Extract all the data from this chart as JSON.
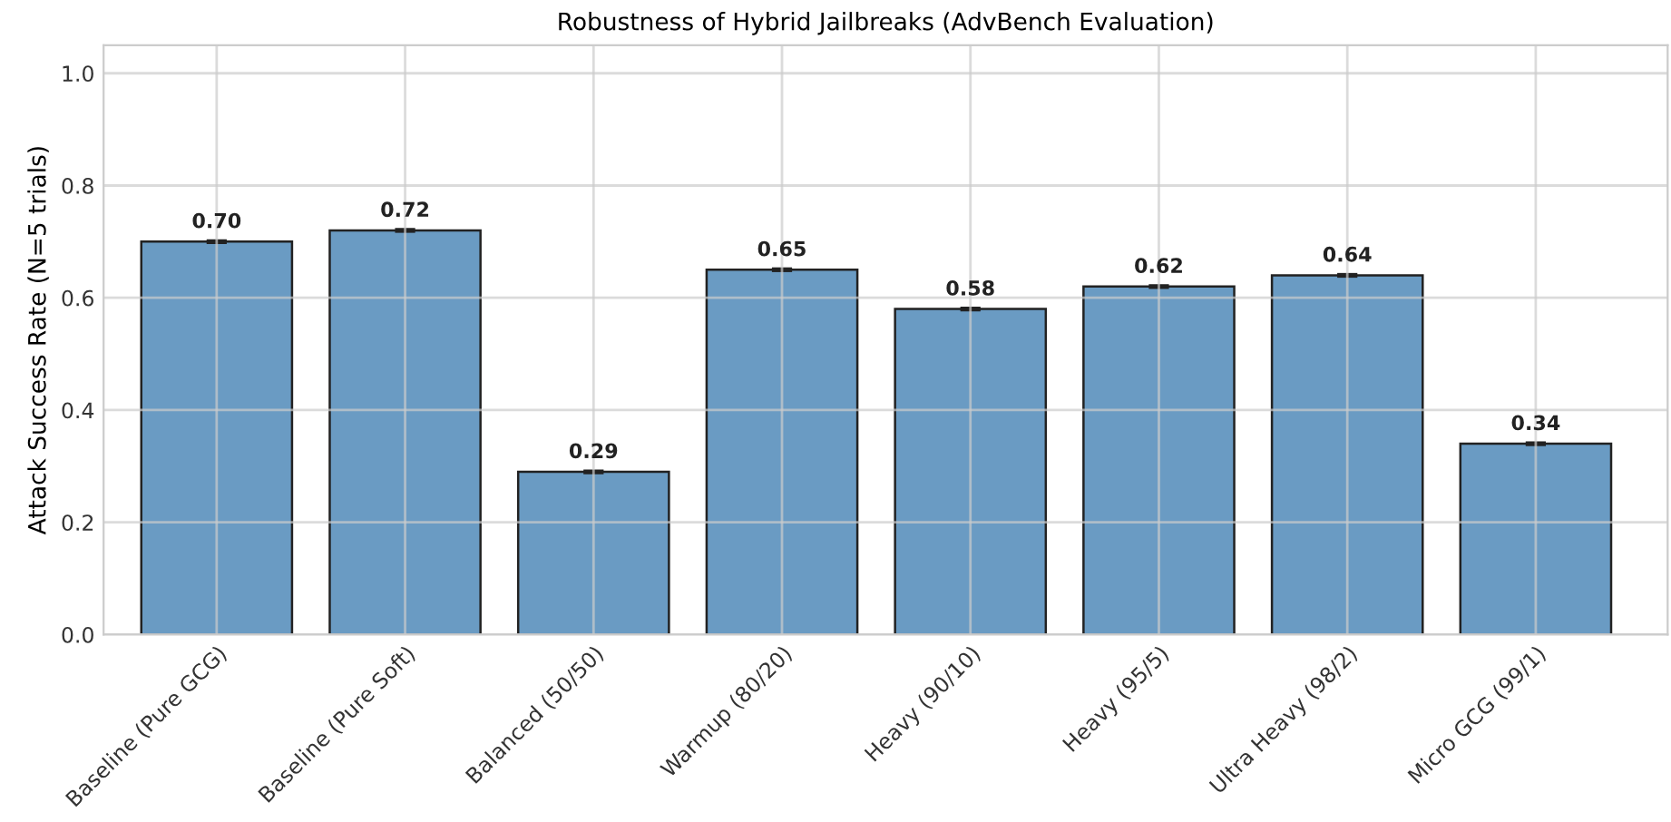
{
  "chart_data": {
    "type": "bar",
    "title": "Robustness of Hybrid Jailbreaks (AdvBench Evaluation)",
    "ylabel": "Attack Success Rate (N=5 trials)",
    "categories": [
      "Baseline (Pure GCG)",
      "Baseline (Pure Soft)",
      "Balanced (50/50)",
      "Warmup (80/20)",
      "Heavy (90/10)",
      "Heavy (95/5)",
      "Ultra Heavy (98/2)",
      "Micro GCG (99/1)"
    ],
    "values": [
      0.7,
      0.72,
      0.29,
      0.65,
      0.58,
      0.62,
      0.64,
      0.34
    ],
    "value_labels": [
      "0.70",
      "0.72",
      "0.29",
      "0.65",
      "0.58",
      "0.62",
      "0.64",
      "0.34"
    ],
    "errors": [
      0.002,
      0.002,
      0.002,
      0.002,
      0.002,
      0.002,
      0.002,
      0.002
    ],
    "color": "#6a9bc3",
    "ylim": [
      0,
      1.05
    ],
    "yticks": [
      {
        "value": 0,
        "label": "0.0"
      },
      {
        "value": 0.2,
        "label": "0.2"
      },
      {
        "value": 0.4,
        "label": "0.4"
      },
      {
        "value": 0.6,
        "label": "0.6"
      },
      {
        "value": 0.8,
        "label": "0.8"
      },
      {
        "value": 1.0,
        "label": "1.0"
      }
    ],
    "grid": true
  }
}
